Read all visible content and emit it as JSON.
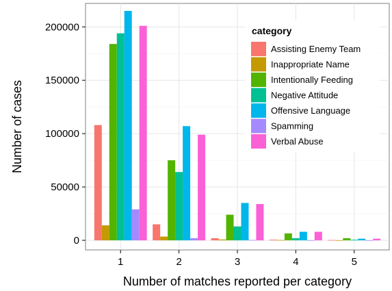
{
  "chart_data": {
    "type": "bar",
    "xlabel": "Number of matches reported per category",
    "ylabel": "Number of cases",
    "categories": [
      "1",
      "2",
      "3",
      "4",
      "5"
    ],
    "ylim": [
      -9000,
      222000
    ],
    "yticks": [
      0,
      50000,
      100000,
      150000,
      200000
    ],
    "ytick_labels": [
      "0",
      "50000",
      "100000",
      "150000",
      "200000"
    ],
    "grid": true,
    "legend": {
      "title": "category",
      "position": "top-right"
    },
    "series": [
      {
        "name": "Assisting Enemy Team",
        "color": "#F8766D",
        "values": [
          108000,
          15000,
          2000,
          600,
          300
        ]
      },
      {
        "name": "Inappropriate Name",
        "color": "#C49A00",
        "values": [
          14000,
          3500,
          800,
          300,
          100
        ]
      },
      {
        "name": "Intentionally Feeding",
        "color": "#53B400",
        "values": [
          184000,
          75000,
          24000,
          6500,
          2000
        ]
      },
      {
        "name": "Negative Attitude",
        "color": "#00C094",
        "values": [
          194000,
          64000,
          13000,
          2000,
          600
        ]
      },
      {
        "name": "Offensive Language",
        "color": "#00B6EB",
        "values": [
          215000,
          107000,
          35000,
          8000,
          1500
        ]
      },
      {
        "name": "Spamming",
        "color": "#A58AFF",
        "values": [
          29000,
          2000,
          300,
          100,
          50
        ]
      },
      {
        "name": "Verbal Abuse",
        "color": "#FB61D7",
        "values": [
          201000,
          99000,
          34000,
          8000,
          1500
        ]
      }
    ]
  }
}
